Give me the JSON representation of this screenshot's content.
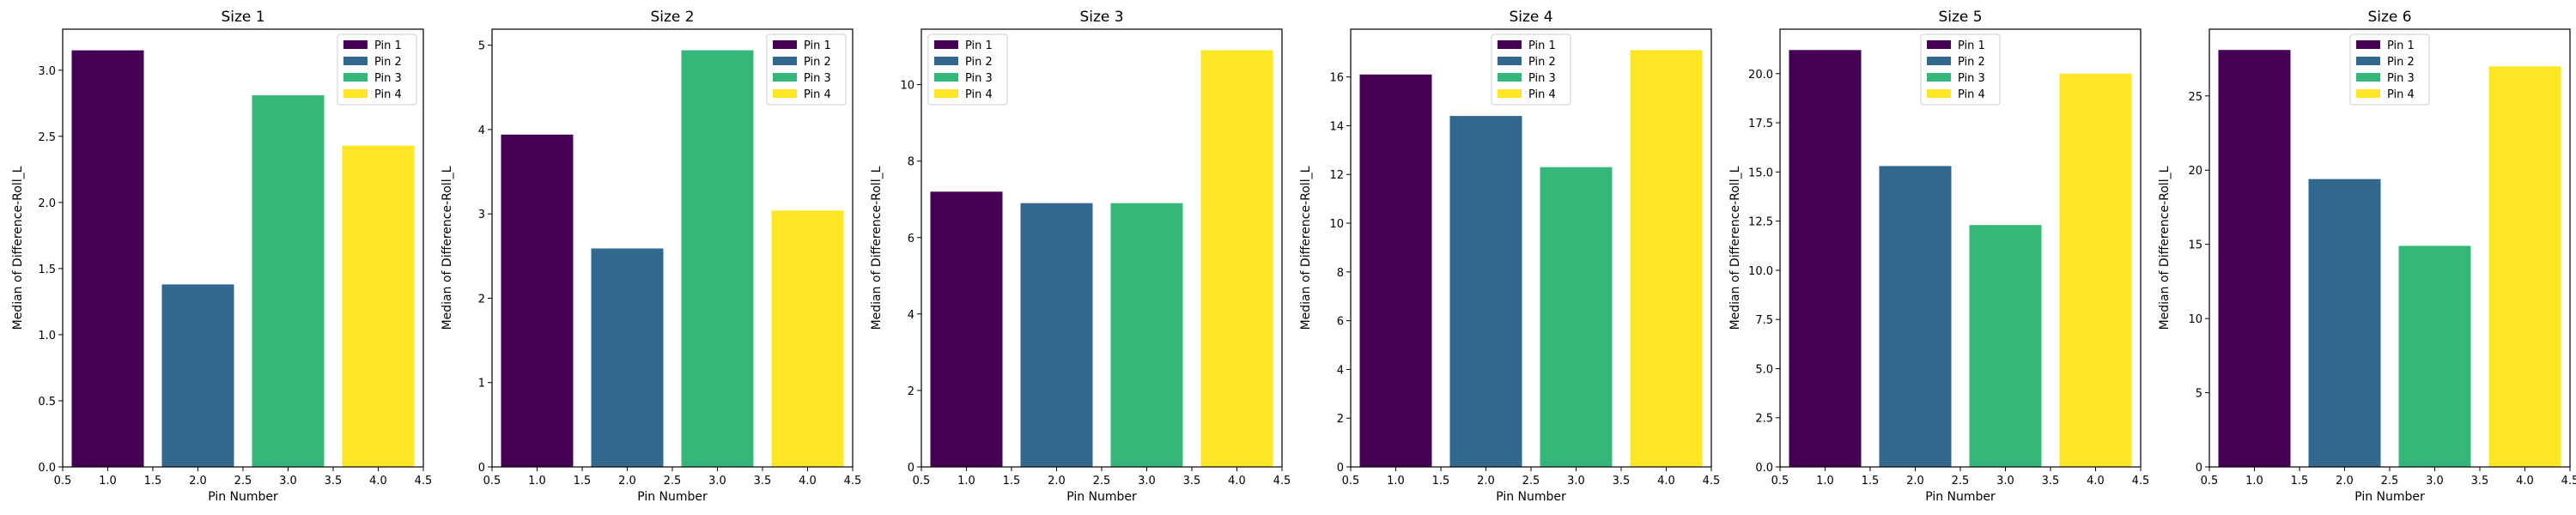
{
  "colors": {
    "pin1": "#440154",
    "pin2": "#31688e",
    "pin3": "#35b779",
    "pin4": "#fde725"
  },
  "chart_data": [
    {
      "type": "bar",
      "title": "Size 1",
      "xlabel": "Pin Number",
      "ylabel": "Median of Difference-Roll_L",
      "x": [
        1,
        2,
        3,
        4
      ],
      "values": [
        3.15,
        1.38,
        2.81,
        2.43
      ],
      "series_names": [
        "Pin 1",
        "Pin 2",
        "Pin 3",
        "Pin 4"
      ],
      "xlim": [
        0.5,
        4.5
      ],
      "ylim": [
        0,
        3.31
      ],
      "xticks": [
        0.5,
        1.0,
        1.5,
        2.0,
        2.5,
        3.0,
        3.5,
        4.0,
        4.5
      ],
      "xtick_labels": [
        "0.5",
        "1.0",
        "1.5",
        "2.0",
        "2.5",
        "3.0",
        "3.5",
        "4.0",
        "4.5"
      ],
      "yticks": [
        0,
        0.5,
        1.0,
        1.5,
        2.0,
        2.5,
        3.0
      ],
      "ytick_labels": [
        "0.0",
        "0.5",
        "1.0",
        "1.5",
        "2.0",
        "2.5",
        "3.0"
      ],
      "legend": "top-right",
      "grid": false
    },
    {
      "type": "bar",
      "title": "Size 2",
      "xlabel": "Pin Number",
      "ylabel": "Median of Difference-Roll_L",
      "x": [
        1,
        2,
        3,
        4
      ],
      "values": [
        3.94,
        2.59,
        4.94,
        3.04
      ],
      "series_names": [
        "Pin 1",
        "Pin 2",
        "Pin 3",
        "Pin 4"
      ],
      "xlim": [
        0.5,
        4.5
      ],
      "ylim": [
        0,
        5.19
      ],
      "xticks": [
        0.5,
        1.0,
        1.5,
        2.0,
        2.5,
        3.0,
        3.5,
        4.0,
        4.5
      ],
      "xtick_labels": [
        "0.5",
        "1.0",
        "1.5",
        "2.0",
        "2.5",
        "3.0",
        "3.5",
        "4.0",
        "4.5"
      ],
      "yticks": [
        0,
        1,
        2,
        3,
        4,
        5
      ],
      "ytick_labels": [
        "0",
        "1",
        "2",
        "3",
        "4",
        "5"
      ],
      "legend": "top-right",
      "grid": false
    },
    {
      "type": "bar",
      "title": "Size 3",
      "xlabel": "Pin Number",
      "ylabel": "Median of Difference-Roll_L",
      "x": [
        1,
        2,
        3,
        4
      ],
      "values": [
        7.2,
        6.9,
        6.9,
        10.9
      ],
      "series_names": [
        "Pin 1",
        "Pin 2",
        "Pin 3",
        "Pin 4"
      ],
      "xlim": [
        0.5,
        4.5
      ],
      "ylim": [
        0,
        11.45
      ],
      "xticks": [
        0.5,
        1.0,
        1.5,
        2.0,
        2.5,
        3.0,
        3.5,
        4.0,
        4.5
      ],
      "xtick_labels": [
        "0.5",
        "1.0",
        "1.5",
        "2.0",
        "2.5",
        "3.0",
        "3.5",
        "4.0",
        "4.5"
      ],
      "yticks": [
        0,
        2,
        4,
        6,
        8,
        10
      ],
      "ytick_labels": [
        "0",
        "2",
        "4",
        "6",
        "8",
        "10"
      ],
      "legend": "top-left",
      "grid": false
    },
    {
      "type": "bar",
      "title": "Size 4",
      "xlabel": "Pin Number",
      "ylabel": "Median of Difference-Roll_L",
      "x": [
        1,
        2,
        3,
        4
      ],
      "values": [
        16.1,
        14.4,
        12.3,
        17.1
      ],
      "series_names": [
        "Pin 1",
        "Pin 2",
        "Pin 3",
        "Pin 4"
      ],
      "xlim": [
        0.5,
        4.5
      ],
      "ylim": [
        0,
        17.96
      ],
      "xticks": [
        0.5,
        1.0,
        1.5,
        2.0,
        2.5,
        3.0,
        3.5,
        4.0,
        4.5
      ],
      "xtick_labels": [
        "0.5",
        "1.0",
        "1.5",
        "2.0",
        "2.5",
        "3.0",
        "3.5",
        "4.0",
        "4.5"
      ],
      "yticks": [
        0,
        2,
        4,
        6,
        8,
        10,
        12,
        14,
        16
      ],
      "ytick_labels": [
        "0",
        "2",
        "4",
        "6",
        "8",
        "10",
        "12",
        "14",
        "16"
      ],
      "legend": "top-center",
      "grid": false
    },
    {
      "type": "bar",
      "title": "Size 5",
      "xlabel": "Pin Number",
      "ylabel": "Median of Difference-Roll_L",
      "x": [
        1,
        2,
        3,
        4
      ],
      "values": [
        21.2,
        15.3,
        12.3,
        20.0
      ],
      "series_names": [
        "Pin 1",
        "Pin 2",
        "Pin 3",
        "Pin 4"
      ],
      "xlim": [
        0.5,
        4.5
      ],
      "ylim": [
        0,
        22.26
      ],
      "xticks": [
        0.5,
        1.0,
        1.5,
        2.0,
        2.5,
        3.0,
        3.5,
        4.0,
        4.5
      ],
      "xtick_labels": [
        "0.5",
        "1.0",
        "1.5",
        "2.0",
        "2.5",
        "3.0",
        "3.5",
        "4.0",
        "4.5"
      ],
      "yticks": [
        0,
        2.5,
        5.0,
        7.5,
        10.0,
        12.5,
        15.0,
        17.5,
        20.0
      ],
      "ytick_labels": [
        "0.0",
        "2.5",
        "5.0",
        "7.5",
        "10.0",
        "12.5",
        "15.0",
        "17.5",
        "20.0"
      ],
      "legend": "top-center",
      "grid": false
    },
    {
      "type": "bar",
      "title": "Size 6",
      "xlabel": "Pin Number",
      "ylabel": "Median of Difference-Roll_L",
      "x": [
        1,
        2,
        3,
        4
      ],
      "values": [
        28.1,
        19.4,
        14.9,
        27.0
      ],
      "series_names": [
        "Pin 1",
        "Pin 2",
        "Pin 3",
        "Pin 4"
      ],
      "xlim": [
        0.5,
        4.5
      ],
      "ylim": [
        0,
        29.5
      ],
      "xticks": [
        0.5,
        1.0,
        1.5,
        2.0,
        2.5,
        3.0,
        3.5,
        4.0,
        4.5
      ],
      "xtick_labels": [
        "0.5",
        "1.0",
        "1.5",
        "2.0",
        "2.5",
        "3.0",
        "3.5",
        "4.0",
        "4.5"
      ],
      "yticks": [
        0,
        5,
        10,
        15,
        20,
        25
      ],
      "ytick_labels": [
        "0",
        "5",
        "10",
        "15",
        "20",
        "25"
      ],
      "legend": "top-center",
      "grid": false
    }
  ]
}
